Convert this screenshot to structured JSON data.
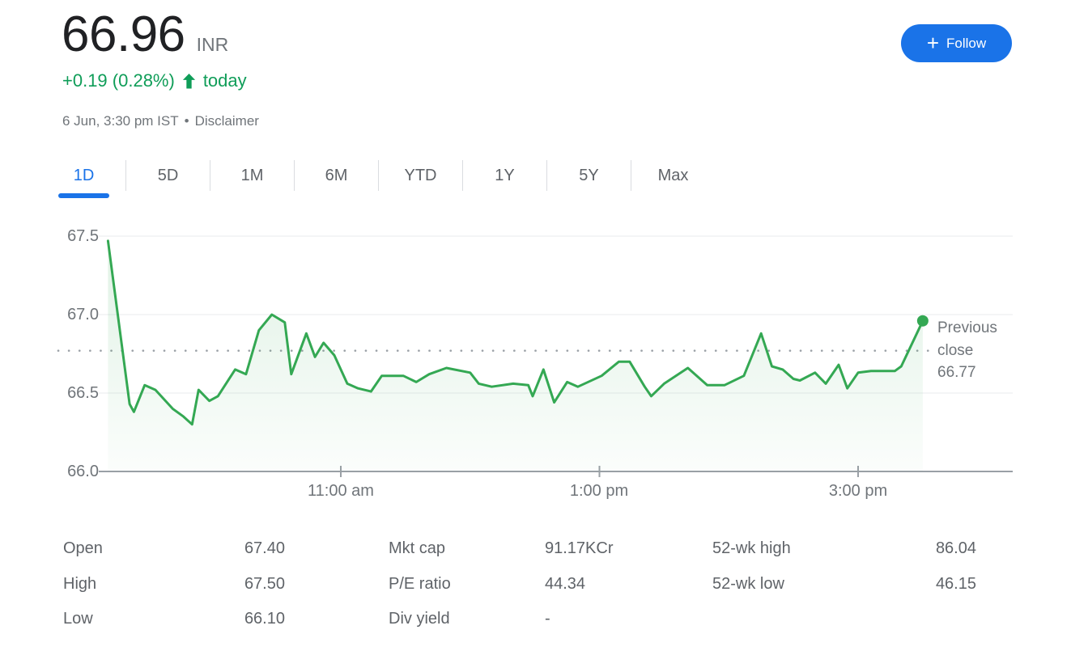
{
  "header": {
    "price": "66.96",
    "currency": "INR",
    "change": "+0.19 (0.28%)",
    "change_direction": "up",
    "change_suffix": "today",
    "timestamp": "6 Jun, 3:30 pm IST",
    "separator": "•",
    "disclaimer": "Disclaimer",
    "follow_plus": "+",
    "follow_label": "Follow"
  },
  "colors": {
    "positive_green": "#0f9d58",
    "line_green": "#34a853",
    "accent_blue": "#1a73e8",
    "muted_gray": "#70757a",
    "axis_gray": "#9aa0a6"
  },
  "tabs": [
    {
      "label": "1D",
      "active": true
    },
    {
      "label": "5D",
      "active": false
    },
    {
      "label": "1M",
      "active": false
    },
    {
      "label": "6M",
      "active": false
    },
    {
      "label": "YTD",
      "active": false
    },
    {
      "label": "1Y",
      "active": false
    },
    {
      "label": "5Y",
      "active": false
    },
    {
      "label": "Max",
      "active": false
    }
  ],
  "chart_data": {
    "type": "line",
    "xlabel": "",
    "ylabel": "",
    "ylim": [
      66.0,
      67.5
    ],
    "grid": true,
    "line_color": "#34a853",
    "y_ticks": [
      66.0,
      66.5,
      67.0,
      67.5
    ],
    "y_tick_labels": [
      "67.5",
      "67.0",
      "66.5",
      "66.0"
    ],
    "x_ticks": [
      {
        "minute": 660,
        "label": "11:00 am"
      },
      {
        "minute": 780,
        "label": "1:00 pm"
      },
      {
        "minute": 900,
        "label": "3:00 pm"
      }
    ],
    "previous_close": {
      "value": 66.77,
      "label_lines": [
        "Previous",
        "close",
        "66.77"
      ]
    },
    "series": [
      {
        "name": "price",
        "points": [
          [
            552,
            67.47
          ],
          [
            562,
            66.43
          ],
          [
            564,
            66.38
          ],
          [
            569,
            66.55
          ],
          [
            574,
            66.52
          ],
          [
            582,
            66.4
          ],
          [
            587,
            66.35
          ],
          [
            591,
            66.3
          ],
          [
            594,
            66.52
          ],
          [
            599,
            66.45
          ],
          [
            603,
            66.48
          ],
          [
            611,
            66.65
          ],
          [
            616,
            66.62
          ],
          [
            622,
            66.9
          ],
          [
            628,
            67.0
          ],
          [
            634,
            66.95
          ],
          [
            637,
            66.62
          ],
          [
            644,
            66.88
          ],
          [
            648,
            66.73
          ],
          [
            652,
            66.82
          ],
          [
            657,
            66.74
          ],
          [
            663,
            66.56
          ],
          [
            668,
            66.53
          ],
          [
            674,
            66.51
          ],
          [
            679,
            66.61
          ],
          [
            689,
            66.61
          ],
          [
            695,
            66.57
          ],
          [
            701,
            66.62
          ],
          [
            709,
            66.66
          ],
          [
            720,
            66.63
          ],
          [
            724,
            66.56
          ],
          [
            730,
            66.54
          ],
          [
            740,
            66.56
          ],
          [
            747,
            66.55
          ],
          [
            749,
            66.48
          ],
          [
            754,
            66.65
          ],
          [
            759,
            66.44
          ],
          [
            765,
            66.57
          ],
          [
            770,
            66.54
          ],
          [
            781,
            66.61
          ],
          [
            789,
            66.7
          ],
          [
            794,
            66.7
          ],
          [
            801,
            66.54
          ],
          [
            804,
            66.48
          ],
          [
            810,
            66.56
          ],
          [
            821,
            66.66
          ],
          [
            830,
            66.55
          ],
          [
            838,
            66.55
          ],
          [
            847,
            66.61
          ],
          [
            855,
            66.88
          ],
          [
            860,
            66.67
          ],
          [
            865,
            66.65
          ],
          [
            870,
            66.59
          ],
          [
            873,
            66.58
          ],
          [
            880,
            66.63
          ],
          [
            885,
            66.56
          ],
          [
            891,
            66.68
          ],
          [
            895,
            66.53
          ],
          [
            900,
            66.63
          ],
          [
            906,
            66.64
          ],
          [
            917,
            66.64
          ],
          [
            920,
            66.67
          ],
          [
            930,
            66.96
          ]
        ]
      }
    ]
  },
  "stats": {
    "columns": [
      {
        "rows": [
          {
            "label": "Open",
            "value": "67.40"
          },
          {
            "label": "High",
            "value": "67.50"
          },
          {
            "label": "Low",
            "value": "66.10"
          }
        ]
      },
      {
        "rows": [
          {
            "label": "Mkt cap",
            "value": "91.17KCr"
          },
          {
            "label": "P/E ratio",
            "value": "44.34"
          },
          {
            "label": "Div yield",
            "value": "-"
          }
        ]
      },
      {
        "rows": [
          {
            "label": "52-wk high",
            "value": "86.04"
          },
          {
            "label": "52-wk low",
            "value": "46.15"
          }
        ]
      }
    ]
  }
}
